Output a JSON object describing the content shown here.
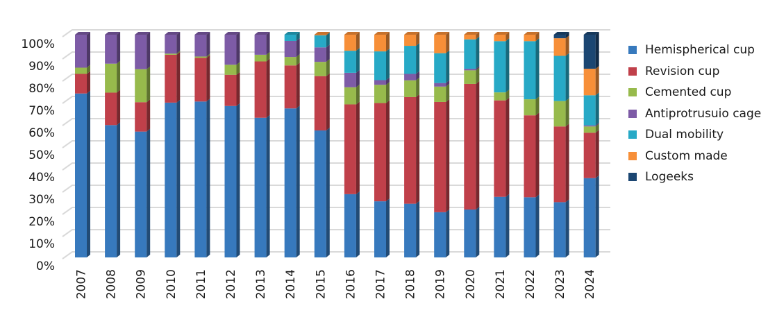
{
  "chart_data": {
    "type": "bar",
    "stacked": "percent",
    "title": "",
    "xlabel": "",
    "ylabel": "",
    "ylim": [
      0,
      100
    ],
    "grid": true,
    "legend_position": "right",
    "yticks": [
      "0%",
      "10%",
      "20%",
      "30%",
      "40%",
      "50%",
      "60%",
      "70%",
      "80%",
      "90%",
      "100%"
    ],
    "categories": [
      "2007",
      "2008",
      "2009",
      "2010",
      "2011",
      "2012",
      "2013",
      "2014",
      "2015",
      "2016",
      "2017",
      "2018",
      "2019",
      "2020",
      "2021",
      "2022",
      "2023",
      "2024"
    ],
    "series": [
      {
        "name": "Hemispherical cup",
        "color": "#3779BD",
        "values": [
          73.6,
          59.4,
          56.5,
          69.5,
          70.0,
          68.0,
          62.7,
          66.9,
          57.0,
          28.4,
          25.2,
          24.1,
          20.3,
          21.5,
          27.2,
          27.0,
          24.8,
          35.6
        ]
      },
      {
        "name": "Revision cup",
        "color": "#C0404A",
        "values": [
          8.8,
          14.6,
          13.2,
          21.5,
          19.6,
          14.0,
          25.3,
          19.3,
          24.4,
          40.3,
          44.1,
          47.9,
          49.5,
          56.4,
          43.3,
          36.8,
          34.0,
          20.4
        ]
      },
      {
        "name": "Cemented cup",
        "color": "#97BA4C",
        "values": [
          2.8,
          13.0,
          14.8,
          0.5,
          0.6,
          4.5,
          3.0,
          3.8,
          6.4,
          7.7,
          8.2,
          7.5,
          6.9,
          6.1,
          3.6,
          7.2,
          11.4,
          2.8
        ]
      },
      {
        "name": "Antiprotrusuio cage",
        "color": "#7D5BA6",
        "values": [
          14.8,
          13.0,
          15.5,
          8.5,
          9.8,
          13.5,
          9.0,
          7.2,
          6.5,
          6.5,
          2.1,
          2.9,
          1.6,
          0.7,
          0.0,
          0.0,
          0.0,
          0.5
        ]
      },
      {
        "name": "Dual mobility",
        "color": "#27A9C6",
        "values": [
          0,
          0,
          0,
          0,
          0,
          0,
          0,
          2.8,
          5.4,
          9.9,
          12.9,
          12.6,
          13.4,
          13.2,
          23.0,
          26.1,
          20.3,
          13.5
        ]
      },
      {
        "name": "Custom made",
        "color": "#F78F38",
        "values": [
          0,
          0,
          0,
          0,
          0,
          0,
          0,
          0,
          0.3,
          7.2,
          7.5,
          5.0,
          8.3,
          2.1,
          2.9,
          2.9,
          7.9,
          11.9
        ]
      },
      {
        "name": "Logeeks",
        "color": "#1B4672",
        "values": [
          0,
          0,
          0,
          0,
          0,
          0,
          0,
          0,
          0,
          0,
          0,
          0,
          0,
          0,
          0,
          0,
          1.6,
          15.3
        ]
      }
    ]
  }
}
